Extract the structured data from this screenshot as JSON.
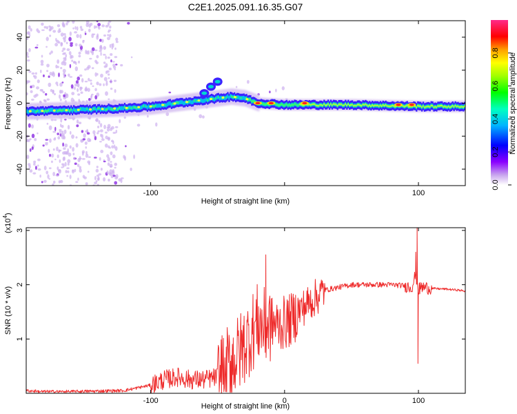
{
  "figure_title": "C2E1.2025.091.16.35.G07",
  "chart_data": [
    {
      "type": "heatmap",
      "title": "C2E1.2025.091.16.35.G07",
      "xlabel": "Height of straight line (km)",
      "ylabel": "Frequency (Hz)",
      "xlim": [
        -193,
        135
      ],
      "ylim": [
        -50,
        50
      ],
      "x_ticks": [
        -100,
        0,
        100
      ],
      "x_tick_labels": [
        "-100",
        "",
        "100"
      ],
      "y_ticks": [
        -40,
        -20,
        0,
        20,
        40
      ],
      "y_tick_labels": [
        "-40",
        "-20",
        "0",
        "20",
        "40"
      ],
      "colorbar": {
        "label": "Normalized spectral amplitude",
        "range": [
          0,
          1
        ],
        "ticks": [
          0.0,
          0.2,
          0.4,
          0.6,
          0.8
        ],
        "tick_labels": [
          "0.0",
          "0.2",
          "0.4",
          "0.6",
          "0.8"
        ],
        "colormap": [
          "#ffffff",
          "#b58ee6",
          "#7a00ff",
          "#0000ff",
          "#00c8ff",
          "#00ff80",
          "#80ff00",
          "#ffff00",
          "#ffa000",
          "#ff0000",
          "#ff3090"
        ]
      },
      "ridge": {
        "description_points": [
          {
            "x": -193,
            "y": -5
          },
          {
            "x": -150,
            "y": -4
          },
          {
            "x": -120,
            "y": -3
          },
          {
            "x": -100,
            "y": -2
          },
          {
            "x": -80,
            "y": 0
          },
          {
            "x": -60,
            "y": 2
          },
          {
            "x": -40,
            "y": 4
          },
          {
            "x": -30,
            "y": 3
          },
          {
            "x": -20,
            "y": 0
          },
          {
            "x": 0,
            "y": -1
          },
          {
            "x": 50,
            "y": -1
          },
          {
            "x": 100,
            "y": -2
          },
          {
            "x": 135,
            "y": -2
          }
        ],
        "branch": [
          {
            "x": -60,
            "y": 6
          },
          {
            "x": -55,
            "y": 10
          },
          {
            "x": -50,
            "y": 13
          }
        ],
        "peaks": [
          {
            "x": -20,
            "y": 0,
            "amp": 0.95
          },
          {
            "x": -10,
            "y": 0,
            "amp": 0.9
          },
          {
            "x": 15,
            "y": 0,
            "amp": 0.95
          },
          {
            "x": 85,
            "y": -1,
            "amp": 0.95
          },
          {
            "x": 95,
            "y": -1,
            "amp": 0.9
          }
        ]
      }
    },
    {
      "type": "line",
      "xlabel": "Height of straight line (km)",
      "ylabel": "SNR (10 * v/v)",
      "y_scale_label": "(x10",
      "y_scale_exp": "4",
      "y_scale_close": ")",
      "xlim": [
        -193,
        135
      ],
      "ylim": [
        0,
        3.05
      ],
      "x_ticks": [
        -100,
        0,
        100
      ],
      "x_tick_labels": [
        "-100",
        "0",
        "100"
      ],
      "y_ticks": [
        1,
        2,
        3
      ],
      "y_tick_labels": [
        "1",
        "2",
        "3"
      ],
      "line_color": "#ee2a2a",
      "series": [
        {
          "x": [
            -193,
            -180,
            -160,
            -140,
            -120,
            -100,
            -90,
            -80,
            -70,
            -60,
            -50,
            -40,
            -35,
            -30,
            -25,
            -20,
            -15,
            -10,
            -5,
            0,
            5,
            10,
            15,
            20,
            25,
            30,
            40,
            50,
            60,
            70,
            80,
            90,
            95,
            98,
            100,
            102,
            105,
            110,
            120,
            130,
            135
          ],
          "y": [
            0.05,
            0.03,
            0.03,
            0.04,
            0.05,
            0.15,
            0.25,
            0.3,
            0.25,
            0.25,
            0.3,
            0.6,
            0.7,
            0.9,
            1.1,
            1.3,
            1.2,
            1.3,
            1.25,
            1.3,
            1.35,
            1.5,
            1.6,
            1.7,
            1.8,
            1.9,
            1.95,
            2.0,
            2.0,
            2.0,
            2.0,
            1.98,
            1.95,
            2.2,
            1.9,
            1.95,
            1.95,
            1.93,
            1.92,
            1.9,
            1.88
          ],
          "spikes": [
            {
              "x": -14,
              "y": 2.55
            },
            {
              "x": 99,
              "y": 3.05
            },
            {
              "x": 99.6,
              "y": 0.55
            },
            {
              "x": 98,
              "y": 2.6
            }
          ]
        }
      ]
    }
  ]
}
